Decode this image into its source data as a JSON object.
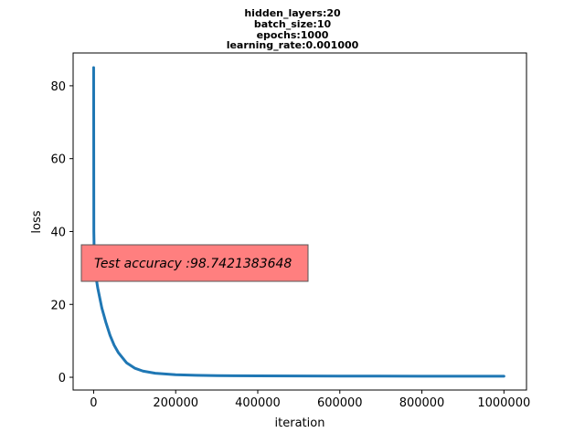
{
  "chart_data": {
    "type": "line",
    "title_lines": [
      "hidden_layers:20",
      "batch_size:10",
      "epochs:1000",
      "learning_rate:0.001000"
    ],
    "xlabel": "iteration",
    "ylabel": "loss",
    "xlim": [
      -50000,
      1055000
    ],
    "ylim": [
      -3.5,
      89
    ],
    "xticks": [
      0,
      200000,
      400000,
      600000,
      800000,
      1000000
    ],
    "xtick_labels": [
      "0",
      "200000",
      "400000",
      "600000",
      "800000",
      "1000000"
    ],
    "yticks": [
      0,
      20,
      40,
      60,
      80
    ],
    "ytick_labels": [
      "0",
      "20",
      "40",
      "60",
      "80"
    ],
    "grid": false,
    "line_color": "#1f77b4",
    "series": [
      {
        "x": [
          0,
          500,
          1500,
          3000,
          5000,
          10000,
          20000,
          30000,
          40000,
          50000,
          60000,
          80000,
          100000,
          120000,
          150000,
          200000,
          250000,
          300000,
          400000,
          500000,
          600000,
          700000,
          800000,
          900000,
          1000000
        ],
        "y": [
          85,
          40,
          33,
          30,
          28,
          24.5,
          19,
          15,
          11.5,
          8.8,
          6.8,
          4,
          2.5,
          1.7,
          1.1,
          0.7,
          0.55,
          0.45,
          0.4,
          0.35,
          0.33,
          0.32,
          0.3,
          0.3,
          0.3
        ]
      }
    ],
    "annotation": {
      "text": "Test accuracy :98.7421383648",
      "box_color": "#ff7f7f"
    }
  }
}
